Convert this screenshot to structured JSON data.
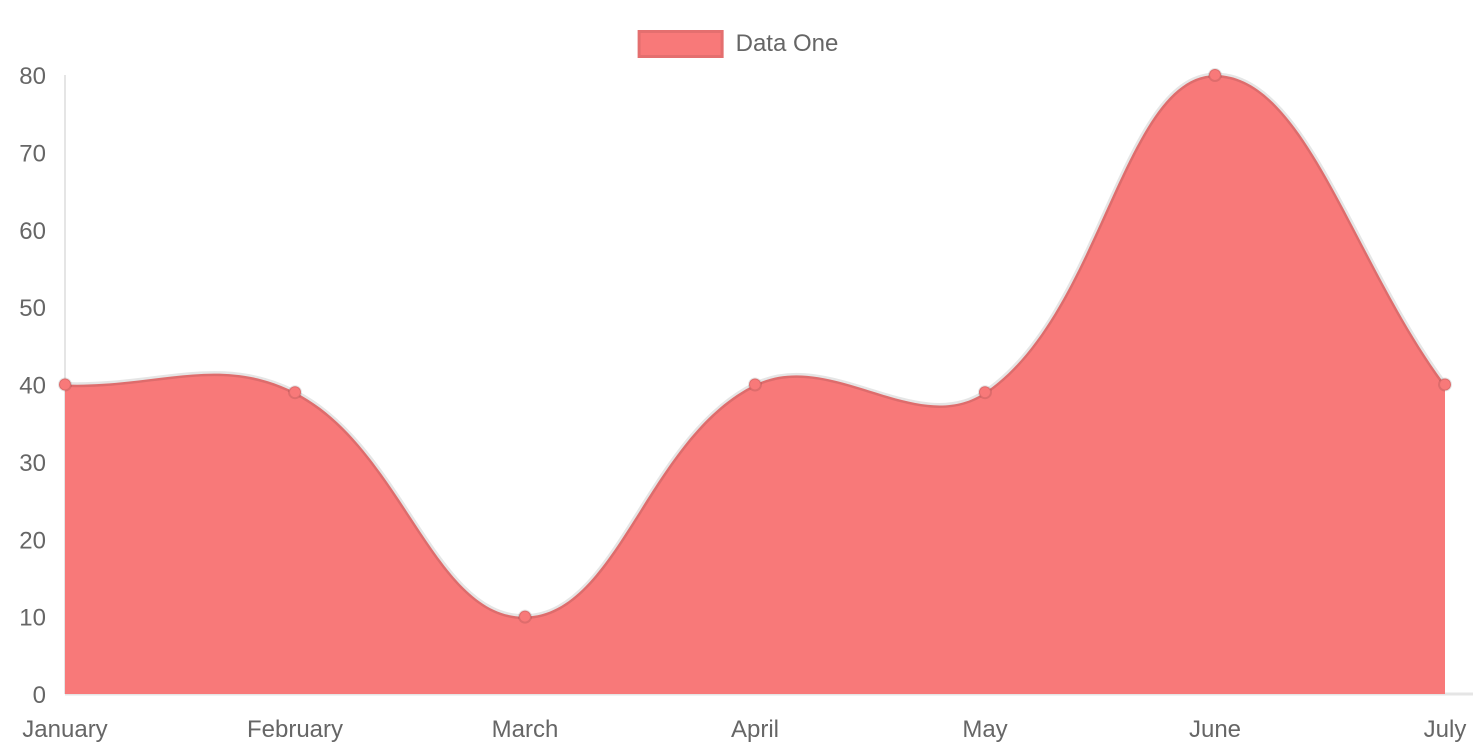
{
  "chart_data": {
    "type": "area",
    "title": "",
    "xlabel": "",
    "ylabel": "",
    "categories": [
      "January",
      "February",
      "March",
      "April",
      "May",
      "June",
      "July"
    ],
    "series": [
      {
        "name": "Data One",
        "values": [
          40,
          39,
          10,
          40,
          39,
          80,
          40
        ]
      }
    ],
    "ylim": [
      0,
      80
    ],
    "y_ticks": [
      0,
      10,
      20,
      30,
      40,
      50,
      60,
      70,
      80
    ],
    "grid": false,
    "smoothing": "bezier",
    "bezier_tension": 0.4,
    "legend": {
      "position": "top",
      "entries": [
        {
          "label": "Data One",
          "color": "#f87979"
        }
      ]
    },
    "colors": {
      "area_fill": "#f87979",
      "line_stroke": "rgba(0,0,0,0.1)",
      "point_fill": "#f87979",
      "point_border": "rgba(0,0,0,0.1)",
      "axis_line": "rgba(0,0,0,0.1)",
      "tick_text": "#666666",
      "background": "#ffffff"
    }
  }
}
